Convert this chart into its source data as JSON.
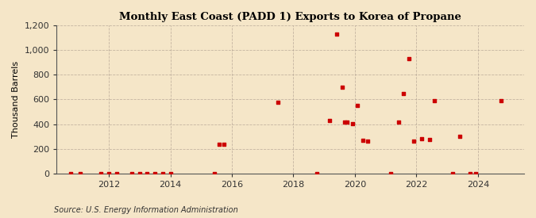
{
  "title": "Monthly East Coast (PADD 1) Exports to Korea of Propane",
  "ylabel": "Thousand Barrels",
  "source": "Source: U.S. Energy Information Administration",
  "background_color": "#f5e6c8",
  "plot_bg_color": "#f5e6c8",
  "marker_color": "#cc0000",
  "marker_size": 3,
  "ylim": [
    0,
    1200
  ],
  "yticks": [
    0,
    200,
    400,
    600,
    800,
    1000,
    1200
  ],
  "xlim_start": 2010.3,
  "xlim_end": 2025.5,
  "xticks": [
    2012,
    2014,
    2016,
    2018,
    2020,
    2022,
    2024
  ],
  "data_points": [
    [
      2010.75,
      0
    ],
    [
      2011.08,
      0
    ],
    [
      2011.75,
      0
    ],
    [
      2012.0,
      0
    ],
    [
      2012.25,
      0
    ],
    [
      2012.75,
      0
    ],
    [
      2013.0,
      0
    ],
    [
      2013.25,
      0
    ],
    [
      2013.5,
      0
    ],
    [
      2013.75,
      0
    ],
    [
      2014.0,
      0
    ],
    [
      2015.42,
      0
    ],
    [
      2015.58,
      240
    ],
    [
      2015.75,
      240
    ],
    [
      2017.5,
      580
    ],
    [
      2018.75,
      0
    ],
    [
      2019.17,
      430
    ],
    [
      2019.42,
      1130
    ],
    [
      2019.58,
      700
    ],
    [
      2019.67,
      420
    ],
    [
      2019.75,
      415
    ],
    [
      2019.92,
      405
    ],
    [
      2020.08,
      550
    ],
    [
      2020.25,
      270
    ],
    [
      2020.42,
      260
    ],
    [
      2021.17,
      0
    ],
    [
      2021.42,
      415
    ],
    [
      2021.58,
      650
    ],
    [
      2021.75,
      930
    ],
    [
      2021.92,
      260
    ],
    [
      2022.17,
      280
    ],
    [
      2022.42,
      275
    ],
    [
      2022.58,
      590
    ],
    [
      2023.17,
      0
    ],
    [
      2023.42,
      300
    ],
    [
      2023.75,
      0
    ],
    [
      2023.92,
      0
    ],
    [
      2024.75,
      590
    ]
  ]
}
